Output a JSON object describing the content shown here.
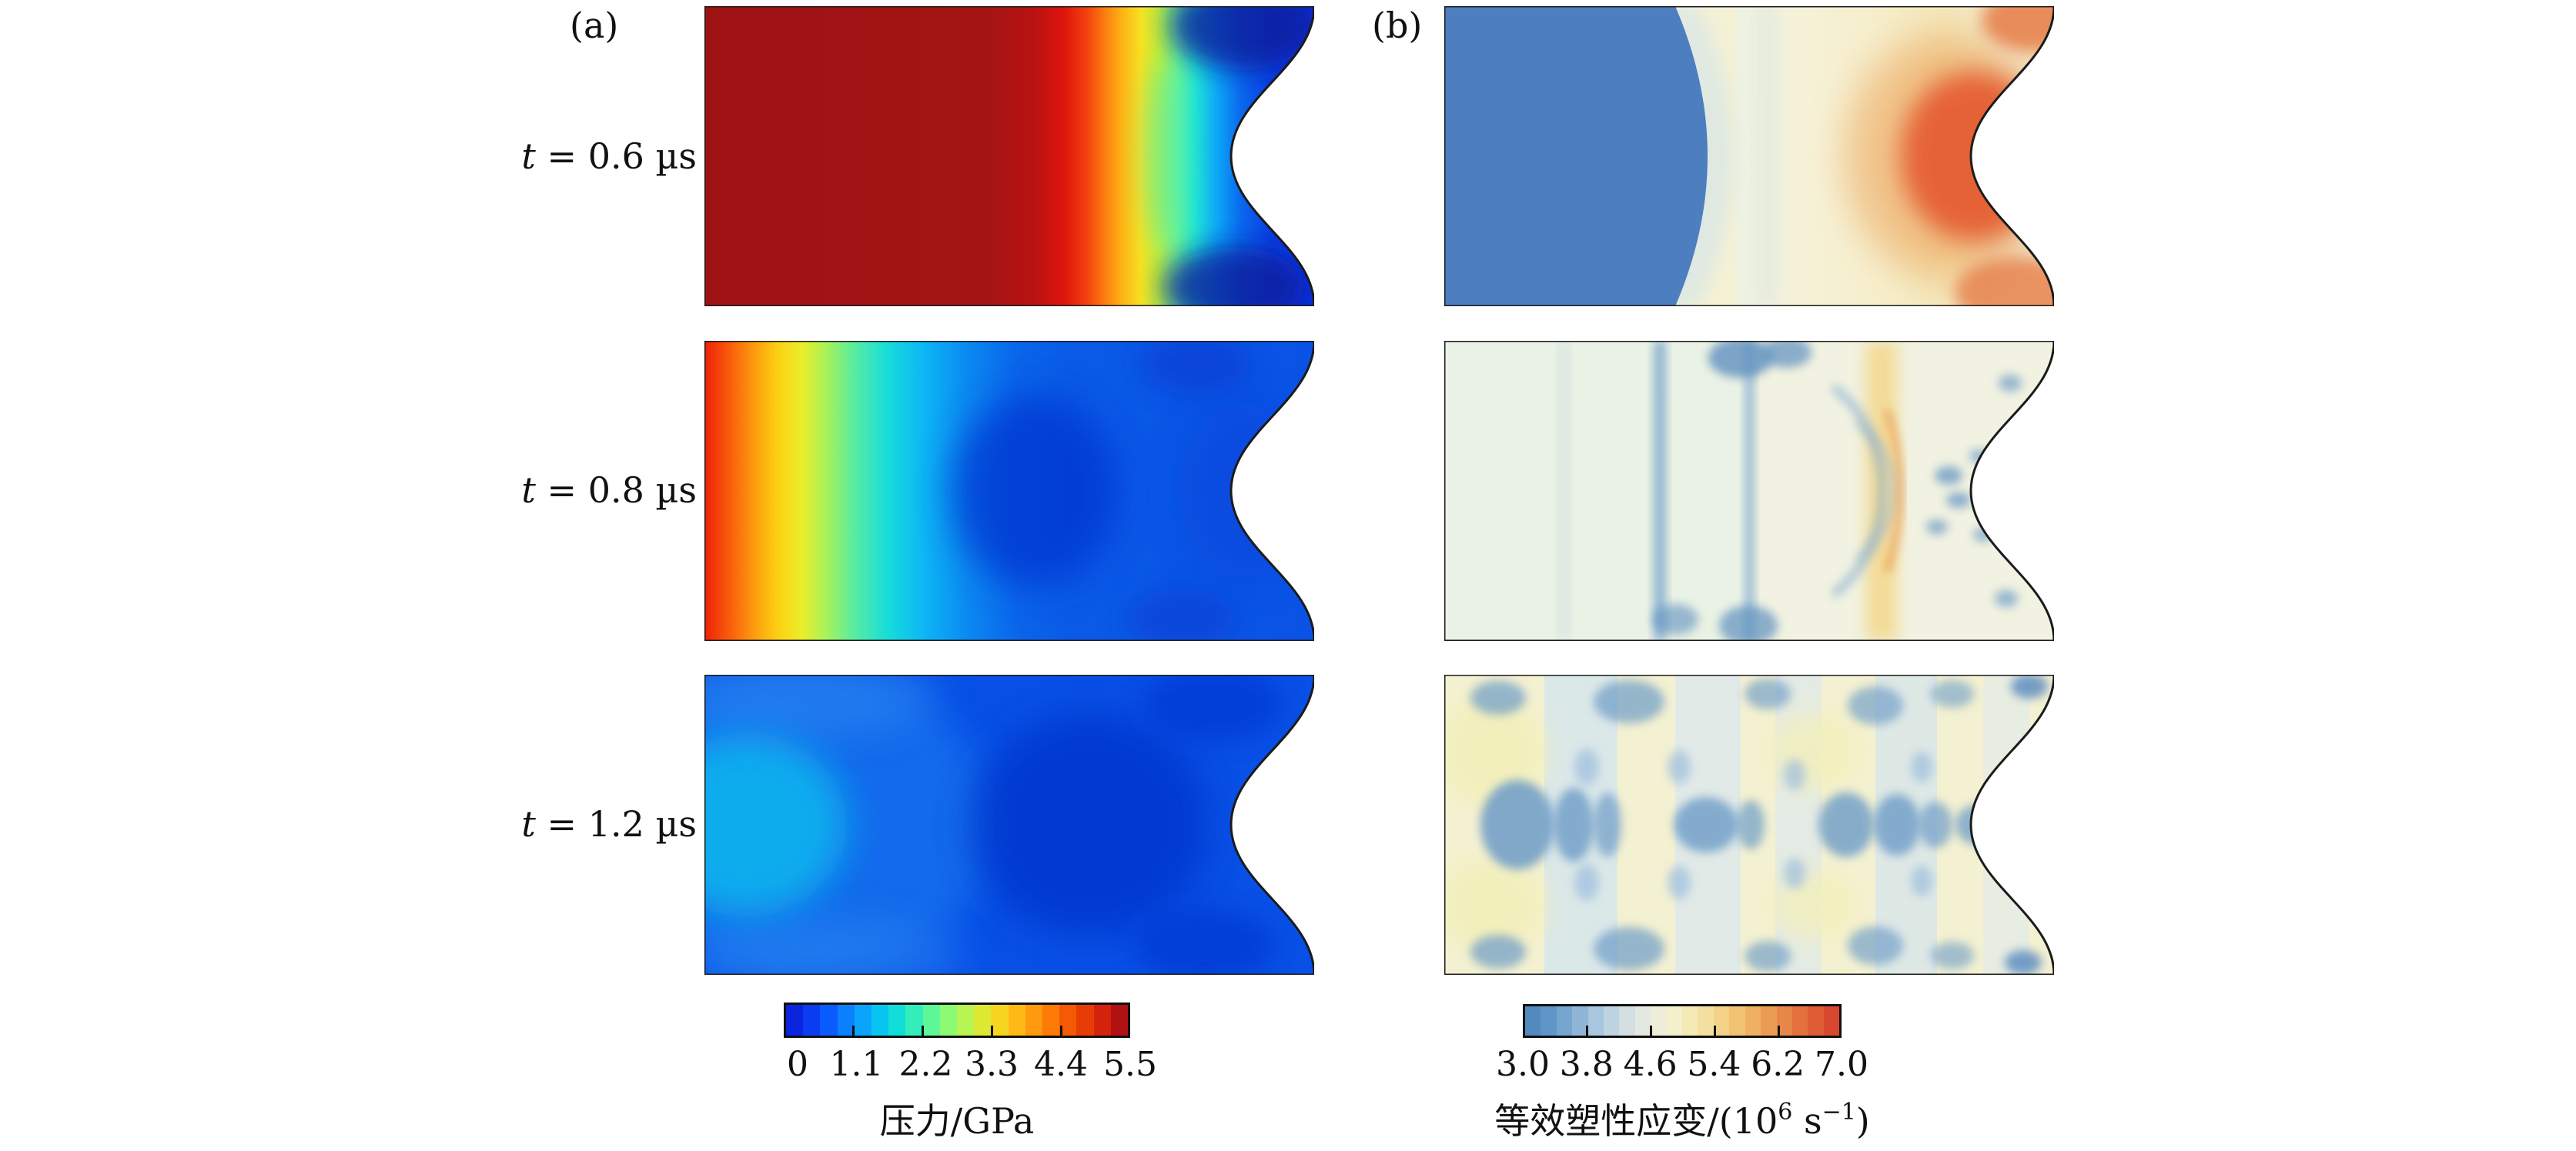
{
  "figure_labels": {
    "a": "(a)",
    "b": "(b)"
  },
  "rows": [
    {
      "var": "t",
      "rest": " = 0.6 µs"
    },
    {
      "var": "t",
      "rest": " = 0.8 µs"
    },
    {
      "var": "t",
      "rest": " = 1.2 µs"
    }
  ],
  "colorbars": {
    "pressure": {
      "label": "压力/GPa",
      "ticks": [
        "0",
        "1.1",
        "2.2",
        "3.3",
        "4.4",
        "5.5"
      ],
      "colors": [
        "#0b24dd",
        "#0b3cf2",
        "#0b5cff",
        "#0b80ff",
        "#0aa4fd",
        "#09c4f1",
        "#12ded9",
        "#33edbb",
        "#5ef798",
        "#8dfa74",
        "#b8f452",
        "#dde833",
        "#f6d520",
        "#ffb916",
        "#ff990e",
        "#fd7a07",
        "#f45a03",
        "#e73c06",
        "#d3230c",
        "#b11113"
      ]
    },
    "strain": {
      "label_prefix": "等效塑性应变/(10",
      "label_sup1": "6",
      "label_mid": " s",
      "label_sup2": "−1",
      "label_suffix": ")",
      "ticks": [
        "3.0",
        "3.8",
        "4.6",
        "5.4",
        "6.2",
        "7.0"
      ],
      "colors": [
        "#528abf",
        "#6096c7",
        "#76a6cf",
        "#8fb6d7",
        "#a8c6dd",
        "#bfd4e1",
        "#d3dfe2",
        "#e3e9e0",
        "#eeeed9",
        "#f3f0cb",
        "#f5eab6",
        "#f5df9e",
        "#f4d287",
        "#f2c273",
        "#efb061",
        "#eb9c53",
        "#e78747",
        "#e3713d",
        "#df5c35",
        "#d9482e"
      ]
    }
  },
  "chart_data": {
    "type": "heatmap",
    "layout": "2 columns x 3 rows of contour maps of a rectangular sample with a sinusoidally grooved right surface; shared colorbar under each column",
    "panels": [
      {
        "id": "(a)",
        "quantity": "压力",
        "unit": "GPa",
        "colormap": "jet (blue-cyan-green-yellow-orange-red)",
        "colorbar_range": [
          0,
          5.5
        ],
        "colorbar_ticks": [
          0,
          1.1,
          2.2,
          3.3,
          4.4,
          5.5
        ],
        "rows": [
          {
            "time_us": 0.6,
            "description": "dark red ~5.5 GPa plateau over left ~55%, steep banded drop through orange/yellow/green/cyan to blue ~0.5 GPa at the grooved right surface; navy low-pressure pockets at top-right and bottom-right"
          },
          {
            "time_us": 0.8,
            "description": "narrow red-orange-yellow band ~4-5 GPa at left edge decaying across green/cyan to blue ~1 GPa over right 60%; darker low-pressure pocket just left of centre"
          },
          {
            "time_us": 1.2,
            "description": "nearly uniform blue ~0.5-1 GPa; brighter cyan pocket near left edge mid-height; darkest blue region right of centre"
          }
        ]
      },
      {
        "id": "(b)",
        "quantity": "等效塑性应变",
        "unit": "(10^6 s^-1)",
        "colormap": "muted blue-cream-yellow-orange (RdYlBu reversed)",
        "colorbar_range": [
          3.0,
          7.0
        ],
        "colorbar_ticks": [
          3.0,
          3.8,
          4.6,
          5.4,
          6.2,
          7.0
        ],
        "rows": [
          {
            "time_us": 0.6,
            "description": "unstrained steel-blue ~3 region over left ~40% bounded by convex front; cream ~4.6-5 field beyond it with orange-red ~6.5-7 concentration at the groove root and orange patches at the right corners"
          },
          {
            "time_us": 0.8,
            "description": "pale mint/cream ~4.5 field with vertical steel-blue low-strain streaks near 35% and 50%, curved blue arcs right of centre, yellow-orange ~5.5-6 band near 70% and blue speckles near the grooved surface"
          },
          {
            "time_us": 1.2,
            "description": "strongly mottled field of steel-blue ~3.5-4 blotches on pale cream/yellow ~4.5-5 background, roughly symmetric about mid-height with a diamond-shaped blue cluster near the left and paired blue lobes right of centre"
          }
        ]
      }
    ]
  }
}
